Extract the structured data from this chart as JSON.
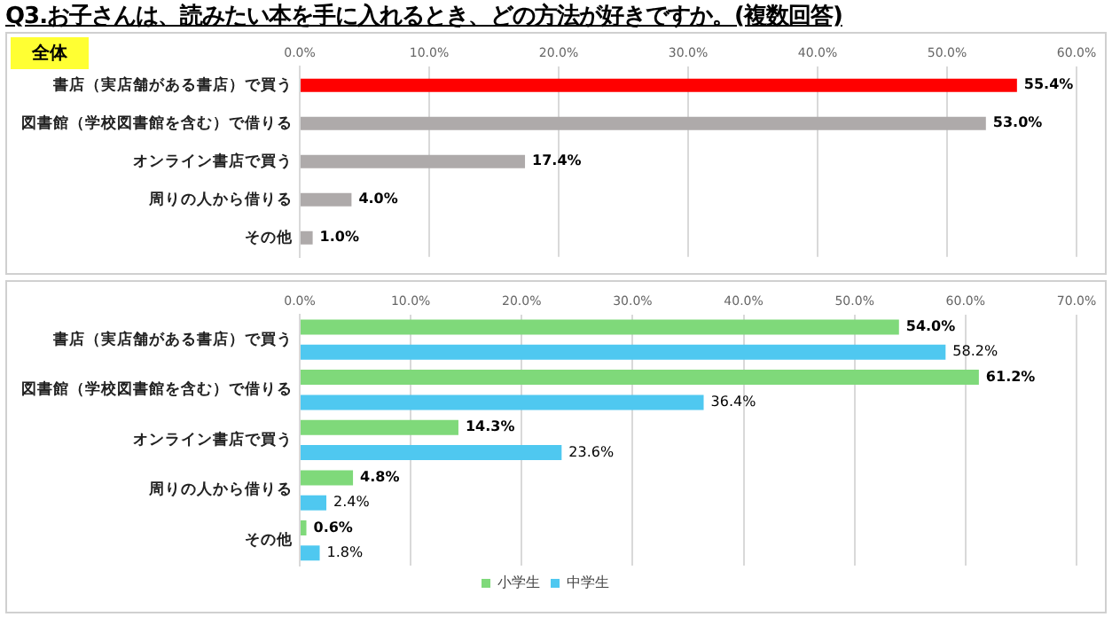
{
  "chart_data": [
    {
      "type": "bar",
      "orientation": "horizontal",
      "title": "Q3.お子さんは、読みたい本を手に入れるとき、どの方法が好きですか。(複数回答)",
      "subtitle": "全体",
      "categories": [
        "書店（実店舗がある書店）で買う",
        "図書館（学校図書館を含む）で借りる",
        "オンライン書店で買う",
        "周りの人から借りる",
        "その他"
      ],
      "values": [
        55.4,
        53.0,
        17.4,
        4.0,
        1.0
      ],
      "colors": [
        "#ff0000",
        "#aeaaaa",
        "#aeaaaa",
        "#aeaaaa",
        "#aeaaaa"
      ],
      "value_labels": [
        "55.4%",
        "53.0%",
        "17.4%",
        "4.0%",
        "1.0%"
      ],
      "xlim": [
        0,
        60
      ],
      "xticks": [
        {
          "value": 0,
          "label": "0.0%"
        },
        {
          "value": 10,
          "label": "10.0%"
        },
        {
          "value": 20,
          "label": "20.0%"
        },
        {
          "value": 30,
          "label": "30.0%"
        },
        {
          "value": 40,
          "label": "40.0%"
        },
        {
          "value": 50,
          "label": "50.0%"
        },
        {
          "value": 60,
          "label": "60.0%"
        }
      ],
      "grid": "x",
      "legend": false
    },
    {
      "type": "bar",
      "orientation": "horizontal",
      "categories": [
        "書店（実店舗がある書店）で買う",
        "図書館（学校図書館を含む）で借りる",
        "オンライン書店で買う",
        "周りの人から借りる",
        "その他"
      ],
      "series": [
        {
          "name": "小学生",
          "color": "#7fd97a",
          "values": [
            54.0,
            61.2,
            14.3,
            4.8,
            0.6
          ],
          "value_labels": [
            "54.0%",
            "61.2%",
            "14.3%",
            "4.8%",
            "0.6%"
          ]
        },
        {
          "name": "中学生",
          "color": "#4fc8f0",
          "values": [
            58.2,
            36.4,
            23.6,
            2.4,
            1.8
          ],
          "value_labels": [
            "58.2%",
            "36.4%",
            "23.6%",
            "2.4%",
            "1.8%"
          ]
        }
      ],
      "xlim": [
        0,
        70
      ],
      "xticks": [
        {
          "value": 0,
          "label": "0.0%"
        },
        {
          "value": 10,
          "label": "10.0%"
        },
        {
          "value": 20,
          "label": "20.0%"
        },
        {
          "value": 30,
          "label": "30.0%"
        },
        {
          "value": 40,
          "label": "40.0%"
        },
        {
          "value": 50,
          "label": "50.0%"
        },
        {
          "value": 60,
          "label": "60.0%"
        },
        {
          "value": 70,
          "label": "70.0%"
        }
      ],
      "grid": "x",
      "legend": "bottom"
    }
  ]
}
